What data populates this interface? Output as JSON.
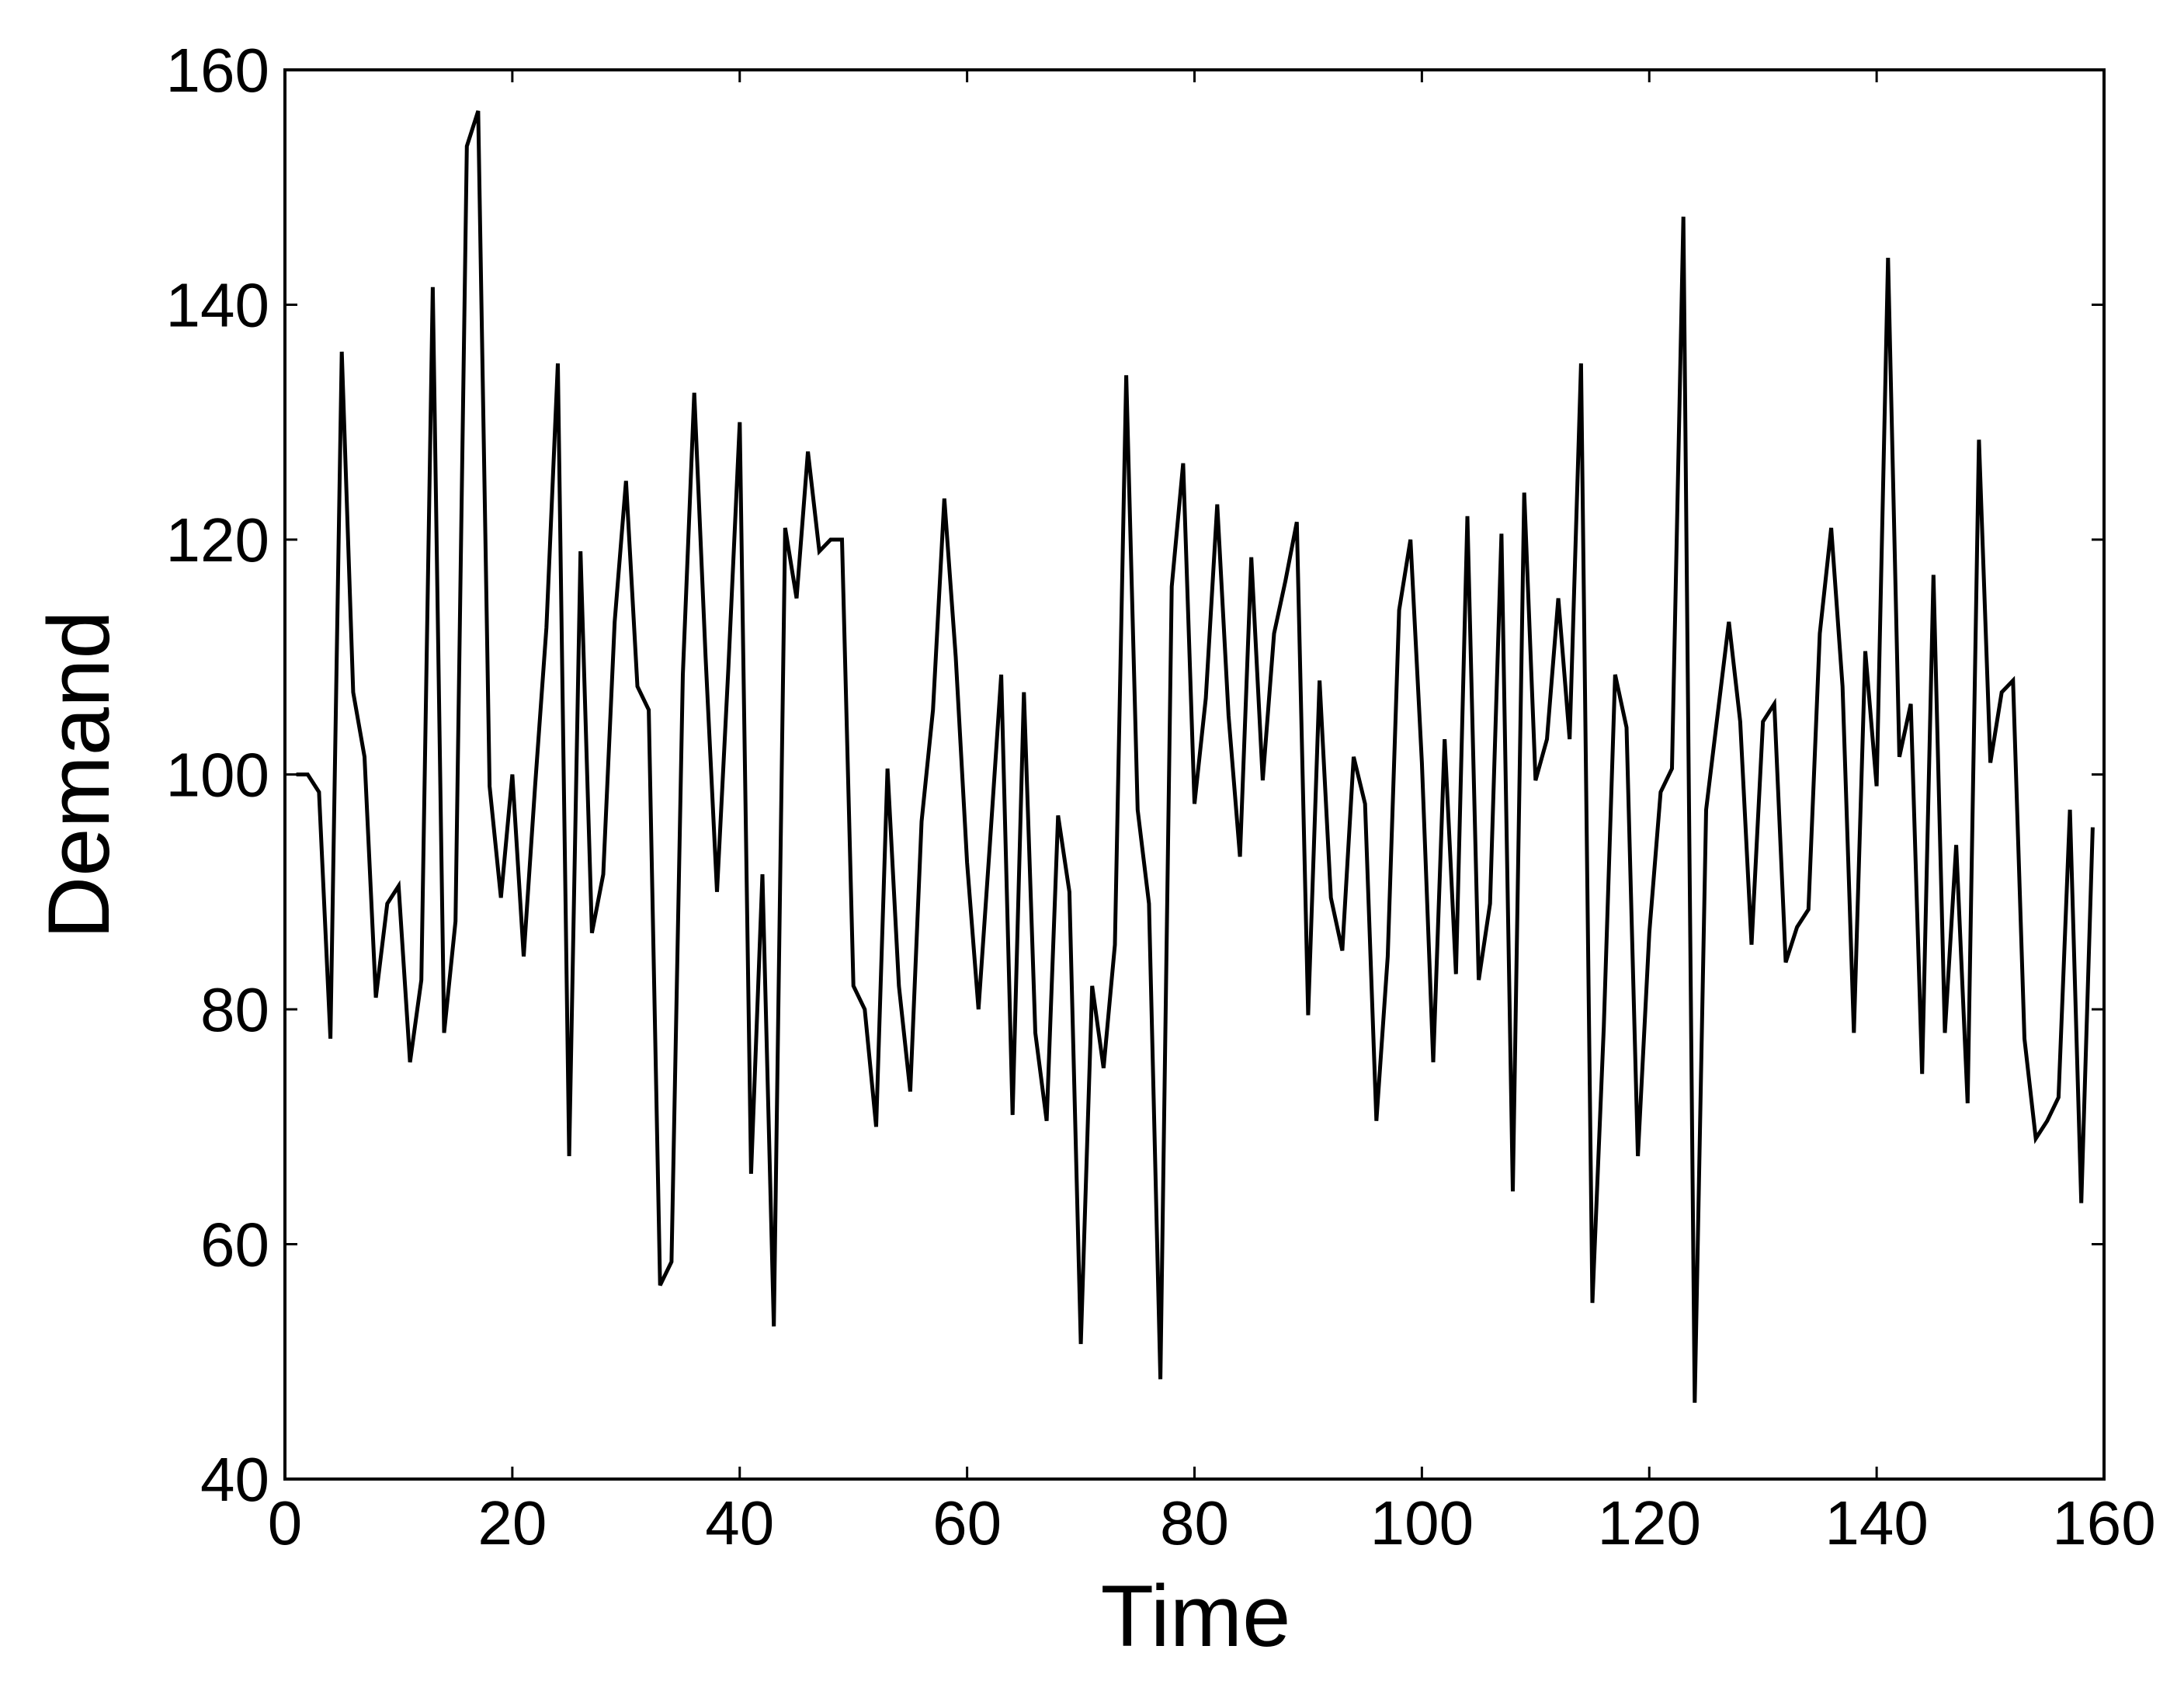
{
  "chart_data": {
    "type": "line",
    "xlabel": "Time",
    "ylabel": "Demand",
    "color": "#000000",
    "x": [
      1,
      2,
      3,
      4,
      5,
      6,
      7,
      8,
      9,
      10,
      11,
      12,
      13,
      14,
      15,
      16,
      17,
      18,
      19,
      20,
      21,
      22,
      23,
      24,
      25,
      26,
      27,
      28,
      29,
      30,
      31,
      32,
      33,
      34,
      35,
      36,
      37,
      38,
      39,
      40,
      41,
      42,
      43,
      44,
      45,
      46,
      47,
      48,
      49,
      50,
      51,
      52,
      53,
      54,
      55,
      56,
      57,
      58,
      59,
      60,
      61,
      62,
      63,
      64,
      65,
      66,
      67,
      68,
      69,
      70,
      71,
      72,
      73,
      74,
      75,
      76,
      77,
      78,
      79,
      80,
      81,
      82,
      83,
      84,
      85,
      86,
      87,
      88,
      89,
      90,
      91,
      92,
      93,
      94,
      95,
      96,
      97,
      98,
      99,
      100,
      101,
      102,
      103,
      104,
      105,
      106,
      107,
      108,
      109,
      110,
      111,
      112,
      113,
      114,
      115,
      116,
      117,
      118,
      119,
      120,
      121,
      122,
      123,
      124,
      125,
      126,
      127,
      128,
      129,
      130,
      131,
      132,
      133,
      134,
      135,
      136,
      137,
      138,
      139,
      140,
      141,
      142,
      143,
      144,
      145,
      146,
      147,
      148,
      149,
      150,
      151,
      152,
      153,
      154,
      155,
      156,
      157,
      158,
      159
    ],
    "values": [
      100,
      100,
      98.5,
      77.5,
      136,
      107,
      101.5,
      81,
      89,
      90.5,
      75.5,
      82.5,
      141.5,
      78,
      87.5,
      153.5,
      156.5,
      99,
      89.5,
      100,
      84.5,
      99,
      112.5,
      135,
      67.5,
      119,
      86.5,
      91.5,
      113,
      125,
      107.5,
      105.5,
      56.5,
      58.5,
      108.5,
      132.5,
      110,
      90,
      109,
      130,
      66,
      91.5,
      53,
      121,
      115,
      127.5,
      119,
      120,
      120,
      82,
      80,
      70,
      100.5,
      82,
      73,
      96,
      105.5,
      123.5,
      110,
      92.5,
      80,
      94,
      108.5,
      71,
      107,
      78,
      70.5,
      96.5,
      90,
      51.5,
      82,
      75,
      85.5,
      134,
      97,
      89,
      48.5,
      116,
      126.5,
      97.5,
      106.5,
      123,
      105,
      93,
      118.5,
      99.5,
      112,
      116.5,
      121.5,
      79.5,
      108,
      89.5,
      85,
      101.5,
      97.5,
      70.5,
      84.5,
      114,
      120,
      101,
      75.5,
      103,
      83,
      122,
      82.5,
      89,
      120.5,
      64.5,
      124,
      99.5,
      103,
      115,
      103,
      135,
      55,
      78.5,
      108.5,
      104,
      67.5,
      86.5,
      98.5,
      100.5,
      147.5,
      46.5,
      97,
      105,
      113,
      104.5,
      85.5,
      104.5,
      106,
      84,
      87,
      88.5,
      112,
      121,
      107.5,
      78,
      110.5,
      99,
      144,
      101.5,
      106,
      74.5,
      117,
      78,
      94,
      72,
      128.5,
      101,
      107,
      108,
      77.5,
      69,
      70.5,
      72.5,
      97,
      63.5,
      95.5
    ],
    "xlim": [
      0,
      160
    ],
    "ylim": [
      40,
      160
    ],
    "xticks": [
      0,
      20,
      40,
      60,
      80,
      100,
      120,
      140,
      160
    ],
    "yticks": [
      40,
      60,
      80,
      100,
      120,
      140,
      160
    ]
  }
}
